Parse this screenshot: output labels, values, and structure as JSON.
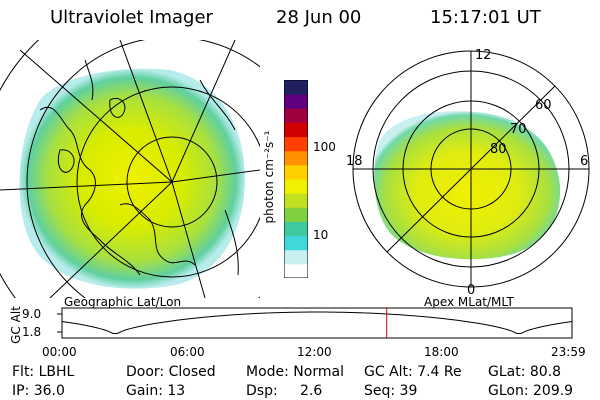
{
  "header": {
    "title": "Ultraviolet Imager",
    "date": "28 Jun 00",
    "time": "15:17:01 UT"
  },
  "left_map": {
    "caption": "Geographic Lat/Lon"
  },
  "right_map": {
    "caption": "Apex MLat/MLT",
    "mlt_labels": {
      "top": "12",
      "left": "18",
      "right": "6",
      "bottom": "0"
    },
    "lat_labels": [
      "60",
      "70",
      "80"
    ]
  },
  "colorbar": {
    "unit_label": "photon cm⁻²s⁻¹",
    "ticks": [
      "100",
      "10"
    ],
    "colors": [
      "#ffffff",
      "#c8f0f0",
      "#40d8d8",
      "#40c8a0",
      "#80d040",
      "#c0e020",
      "#f0f000",
      "#ffd000",
      "#ff9000",
      "#ff4000",
      "#d00000",
      "#a00040",
      "#600080",
      "#202060"
    ]
  },
  "timeline": {
    "axis_label": "GC Alt",
    "y_ticks": [
      "9.0",
      "1.8"
    ],
    "x_ticks": [
      "00:00",
      "06:00",
      "12:00",
      "18:00",
      "23:59"
    ],
    "current_time_hours": 15.28
  },
  "status": {
    "flt": "Flt: LBHL",
    "ip": "IP: 36.0",
    "door": "Door: Closed",
    "gain": "Gain: 13",
    "mode": "Mode: Normal",
    "dsp_label": "Dsp:",
    "dsp_value": "2.6",
    "gc_alt": "GC Alt: 7.4 Re",
    "seq": "Seq: 39",
    "glat": "GLat:  80.8",
    "glon": "GLon: 209.9"
  }
}
